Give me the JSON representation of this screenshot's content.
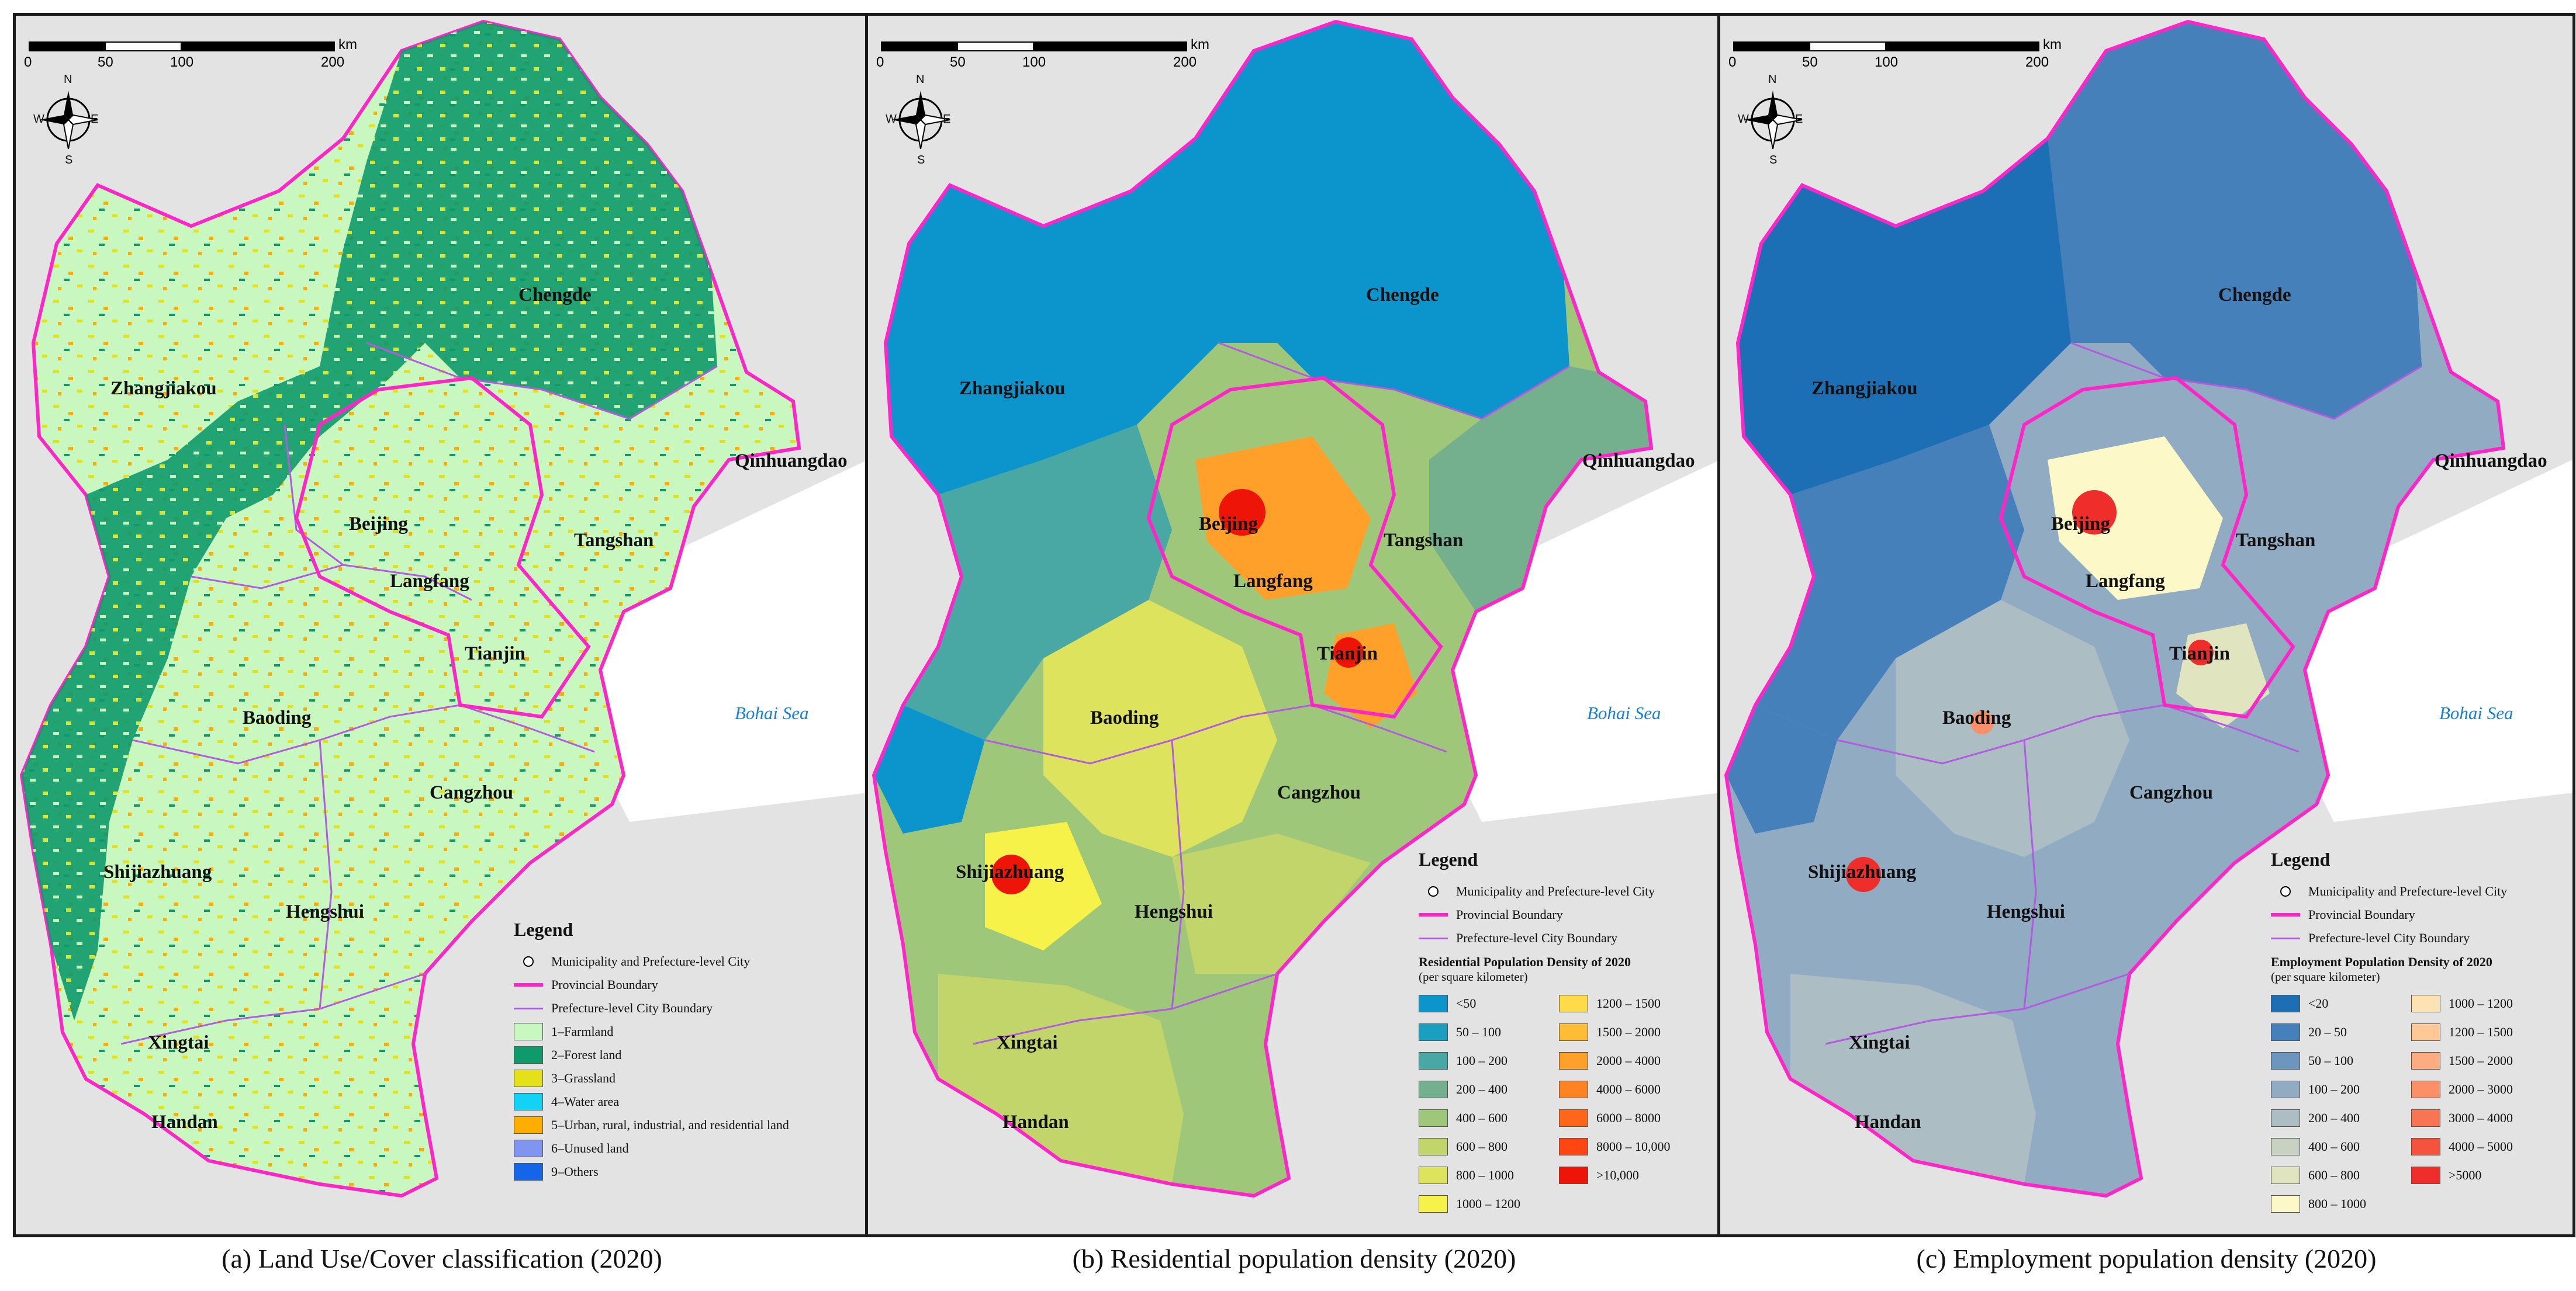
{
  "scale": {
    "ticks": [
      "0",
      "50",
      "100",
      "200"
    ],
    "unit": "km"
  },
  "compass": {
    "n": "N",
    "s": "S",
    "e": "E",
    "w": "W"
  },
  "cities": [
    "Chengde",
    "Zhangjiakou",
    "Qinhuangdao",
    "Beijing",
    "Tangshan",
    "Langfang",
    "Tianjin",
    "Baoding",
    "Cangzhou",
    "Shijiazhuang",
    "Hengshui",
    "Xingtai",
    "Handan"
  ],
  "sea_label": "Bohai Sea",
  "legend_common": {
    "title": "Legend",
    "city_symbol": "Municipality and Prefecture-level City",
    "provincial_boundary": "Provincial Boundary",
    "city_boundary": "Prefecture-level City Boundary"
  },
  "panels": [
    {
      "caption": "(a) Land Use/Cover classification (2020)",
      "landuse_classes": [
        {
          "label": "1–Farmland",
          "color": "#c8f7c0"
        },
        {
          "label": "2–Forest land",
          "color": "#0f9a6c"
        },
        {
          "label": "3–Grassland",
          "color": "#e4e11b"
        },
        {
          "label": "4–Water area",
          "color": "#12d2f5"
        },
        {
          "label": "5–Urban, rural, industrial, and residential land",
          "color": "#ffad00"
        },
        {
          "label": "6–Unused land",
          "color": "#7f95f0"
        },
        {
          "label": "9–Others",
          "color": "#1565e8"
        }
      ]
    },
    {
      "caption": "(b) Residential population density (2020)",
      "density_title": "Residential Population Density of 2020",
      "density_unit": "(per square kilometer)",
      "classes_left": [
        {
          "label": "<50",
          "color": "#0b95cc"
        },
        {
          "label": "50 – 100",
          "color": "#1a9fc0"
        },
        {
          "label": "100 – 200",
          "color": "#4aa8a4"
        },
        {
          "label": "200 – 400",
          "color": "#74b08e"
        },
        {
          "label": "400 – 600",
          "color": "#9ec77a"
        },
        {
          "label": "600 – 800",
          "color": "#c2d56a"
        },
        {
          "label": "800 – 1000",
          "color": "#dde35c"
        },
        {
          "label": "1000 – 1200",
          "color": "#f7f24a"
        }
      ],
      "classes_right": [
        {
          "label": "1200 – 1500",
          "color": "#ffdb4a"
        },
        {
          "label": "1500 – 2000",
          "color": "#ffbd35"
        },
        {
          "label": "2000 – 4000",
          "color": "#ffa02a"
        },
        {
          "label": "4000 – 6000",
          "color": "#ff8322"
        },
        {
          "label": "6000 – 8000",
          "color": "#ff6619"
        },
        {
          "label": "8000 – 10,000",
          "color": "#ff4511"
        },
        {
          "label": ">10,000",
          "color": "#ee1408"
        }
      ]
    },
    {
      "caption": "(c) Employment population density (2020)",
      "density_title": "Employment Population Density of 2020",
      "density_unit": "(per square kilometer)",
      "classes_left": [
        {
          "label": "<20",
          "color": "#1c6fb4"
        },
        {
          "label": "20 – 50",
          "color": "#4680bb"
        },
        {
          "label": "50 – 100",
          "color": "#6c96c0"
        },
        {
          "label": "100 – 200",
          "color": "#91abc2"
        },
        {
          "label": "200 – 400",
          "color": "#adbdc4"
        },
        {
          "label": "400 – 600",
          "color": "#c8d1c2"
        },
        {
          "label": "600 – 800",
          "color": "#e0e5c0"
        },
        {
          "label": "800 – 1000",
          "color": "#fcf8c7"
        }
      ],
      "classes_right": [
        {
          "label": "1000 – 1200",
          "color": "#fde3b3"
        },
        {
          "label": "1200 – 1500",
          "color": "#fdc796"
        },
        {
          "label": "1500 – 2000",
          "color": "#fcac80"
        },
        {
          "label": "2000 – 3000",
          "color": "#fb9068"
        },
        {
          "label": "3000 – 4000",
          "color": "#f97452"
        },
        {
          "label": "4000 – 5000",
          "color": "#f6533d"
        },
        {
          "label": ">5000",
          "color": "#ef2d2a"
        }
      ]
    }
  ]
}
